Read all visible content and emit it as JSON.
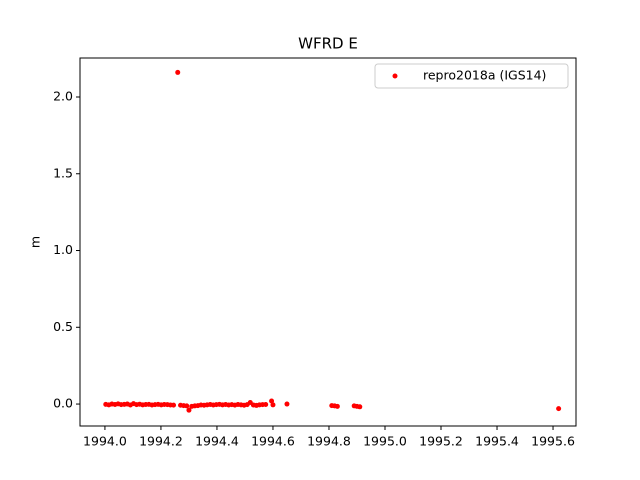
{
  "chart_data": {
    "type": "scatter",
    "title": "WFRD E",
    "y_label": "m",
    "xlim": [
      1993.911,
      1995.682
    ],
    "ylim": [
      -0.143,
      2.254
    ],
    "xticks": [
      {
        "value": 1994.0,
        "label": "1994.0"
      },
      {
        "value": 1994.2,
        "label": "1994.2"
      },
      {
        "value": 1994.4,
        "label": "1994.4"
      },
      {
        "value": 1994.6,
        "label": "1994.6"
      },
      {
        "value": 1994.8,
        "label": "1994.8"
      },
      {
        "value": 1995.0,
        "label": "1995.0"
      },
      {
        "value": 1995.2,
        "label": "1995.2"
      },
      {
        "value": 1995.4,
        "label": "1995.4"
      },
      {
        "value": 1995.6,
        "label": "1995.6"
      }
    ],
    "yticks": [
      {
        "value": 0.0,
        "label": "0.0"
      },
      {
        "value": 0.5,
        "label": "0.5"
      },
      {
        "value": 1.0,
        "label": "1.0"
      },
      {
        "value": 1.5,
        "label": "1.5"
      },
      {
        "value": 2.0,
        "label": "2.0"
      }
    ],
    "legend_position": "upper right",
    "series": [
      {
        "name": "repro2018a (IGS14)",
        "color": "#ff0000",
        "x": [
          1994.003,
          1994.014,
          1994.025,
          1994.036,
          1994.047,
          1994.058,
          1994.069,
          1994.08,
          1994.091,
          1994.102,
          1994.113,
          1994.124,
          1994.135,
          1994.146,
          1994.157,
          1994.168,
          1994.179,
          1994.19,
          1994.201,
          1994.212,
          1994.223,
          1994.234,
          1994.245,
          1994.26,
          1994.27,
          1994.281,
          1994.292,
          1994.3,
          1994.31,
          1994.321,
          1994.332,
          1994.343,
          1994.354,
          1994.365,
          1994.376,
          1994.387,
          1994.398,
          1994.409,
          1994.42,
          1994.431,
          1994.442,
          1994.453,
          1994.464,
          1994.475,
          1994.486,
          1994.497,
          1994.508,
          1994.519,
          1994.53,
          1994.541,
          1994.552,
          1994.563,
          1994.574,
          1994.595,
          1994.6,
          1994.65,
          1994.81,
          1994.82,
          1994.83,
          1994.89,
          1994.9,
          1994.91,
          1995.62
        ],
        "values": [
          -0.002,
          -0.005,
          0.0,
          -0.003,
          0.001,
          -0.004,
          -0.002,
          0.0,
          -0.006,
          0.003,
          -0.004,
          -0.001,
          -0.005,
          -0.003,
          -0.002,
          -0.006,
          -0.004,
          -0.002,
          -0.005,
          -0.003,
          -0.004,
          -0.006,
          -0.007,
          2.16,
          -0.008,
          -0.01,
          -0.012,
          -0.04,
          -0.015,
          -0.012,
          -0.01,
          -0.006,
          -0.008,
          -0.005,
          -0.003,
          -0.006,
          -0.004,
          -0.002,
          -0.005,
          -0.003,
          -0.006,
          -0.004,
          -0.007,
          -0.003,
          -0.005,
          -0.008,
          -0.004,
          0.01,
          -0.006,
          -0.009,
          -0.005,
          -0.004,
          -0.003,
          0.02,
          -0.005,
          0.0,
          -0.01,
          -0.012,
          -0.015,
          -0.012,
          -0.015,
          -0.018,
          -0.03
        ]
      }
    ]
  }
}
